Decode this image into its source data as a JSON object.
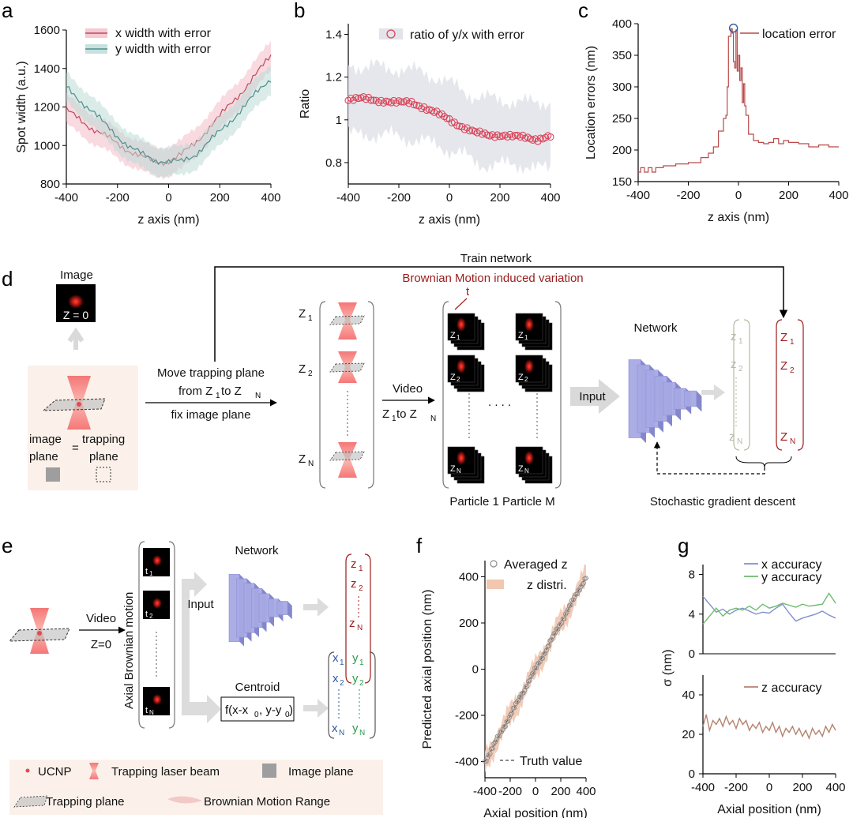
{
  "panels": {
    "a": "a",
    "b": "b",
    "c": "c",
    "d": "d",
    "e": "e",
    "f": "f",
    "g": "g"
  },
  "colors": {
    "x": "#c0485a",
    "y": "#4e8f8e",
    "ratio": "#d9455b",
    "loc": "#b84a4a",
    "accent": "#9b1c1c",
    "net": "#a7a9e4",
    "zx": "#7f8fd0",
    "zy": "#6fba6f",
    "zz": "#b5836f",
    "green": "#2e9b4a",
    "blue": "#2c5aa0",
    "gray": "#b7b9a4",
    "beige": "#fbf1ea"
  },
  "diagram_d": {
    "train": "Train network",
    "brownian": "Brownian Motion induced variation",
    "t": "t",
    "image": "Image",
    "z0": "Z = 0",
    "move1": "Move trapping plane",
    "move2": "from Z",
    "move2b": " to Z",
    "sub1": "1",
    "subN": "N",
    "sub2": "2",
    "fix": "fix image plane",
    "imgplane1": "image",
    "imgplane2": "plane",
    "eq": "=",
    "trap1": "trapping",
    "trap2": "plane",
    "Zsym": "Z",
    "zsym": "z",
    "video": "Video",
    "vrange": "Z",
    "vto": " to Z",
    "dots": ". . . .",
    "particle": "Particle 1 Particle M",
    "network": "Network",
    "input": "Input",
    "sgd": "Stochastic gradient descent"
  },
  "diagram_e": {
    "video": "Video",
    "z0": "Z=0",
    "axial": "Axial Brownian motion",
    "tsym": "t",
    "input": "Input",
    "network": "Network",
    "centroid": "Centroid",
    "formula": "f(x-x",
    "formula_b": ", y-y",
    "formula_c": ")",
    "zero": "0",
    "xsym": "x",
    "ysym": "y",
    "zsym": "z",
    "legend_ucnp": "UCNP",
    "legend_laser": "Trapping laser beam",
    "legend_image": "Image plane",
    "legend_trap": "Trapping plane",
    "legend_brown": "Brownian Motion Range"
  },
  "chart_data": [
    {
      "id": "a",
      "type": "area",
      "title": "",
      "xlabel": "z axis (nm)",
      "ylabel": "Spot width (a.u.)",
      "xlim": [
        -400,
        400
      ],
      "ylim": [
        800,
        1600
      ],
      "xticks": [
        -400,
        -200,
        0,
        200,
        400
      ],
      "yticks": [
        800,
        1000,
        1200,
        1400,
        1600
      ],
      "legend": "top-left",
      "x": [
        -400,
        -350,
        -300,
        -250,
        -200,
        -150,
        -100,
        -50,
        0,
        50,
        100,
        150,
        200,
        250,
        300,
        350,
        400
      ],
      "series": [
        {
          "name": "x width with error",
          "color": "#c0485a",
          "values": [
            1180,
            1140,
            1090,
            1050,
            1010,
            970,
            935,
            915,
            920,
            950,
            1010,
            1080,
            1150,
            1230,
            1300,
            1380,
            1470
          ],
          "error": 75
        },
        {
          "name": "y width with error",
          "color": "#4e8f8e",
          "values": [
            1300,
            1240,
            1180,
            1110,
            1050,
            990,
            950,
            925,
            915,
            915,
            950,
            1010,
            1070,
            1140,
            1210,
            1280,
            1350
          ],
          "error": 75
        }
      ]
    },
    {
      "id": "b",
      "type": "scatter",
      "title": "",
      "xlabel": "z axis (nm)",
      "ylabel": "Ratio",
      "xlim": [
        -400,
        400
      ],
      "ylim": [
        0.7,
        1.45
      ],
      "xticks": [
        -400,
        -200,
        0,
        200,
        400
      ],
      "yticks": [
        0.8,
        1.0,
        1.2,
        1.4
      ],
      "legend": "top-right",
      "series": [
        {
          "name": "ratio of y/x with error",
          "color": "#d9455b",
          "x": [
            -400,
            -350,
            -300,
            -250,
            -200,
            -150,
            -100,
            -50,
            0,
            50,
            100,
            150,
            200,
            250,
            300,
            350,
            400
          ],
          "values": [
            1.1,
            1.1,
            1.09,
            1.09,
            1.08,
            1.08,
            1.06,
            1.03,
            1.0,
            0.97,
            0.94,
            0.93,
            0.93,
            0.92,
            0.92,
            0.91,
            0.92
          ],
          "upper": [
            1.26,
            1.25,
            1.25,
            1.24,
            1.24,
            1.23,
            1.22,
            1.2,
            1.17,
            1.14,
            1.11,
            1.1,
            1.09,
            1.09,
            1.08,
            1.08,
            1.09
          ],
          "lower": [
            0.93,
            0.93,
            0.93,
            0.93,
            0.92,
            0.91,
            0.9,
            0.88,
            0.86,
            0.84,
            0.8,
            0.79,
            0.79,
            0.79,
            0.79,
            0.77,
            0.77
          ]
        }
      ]
    },
    {
      "id": "c",
      "type": "line",
      "title": "",
      "xlabel": "z axis (nm)",
      "ylabel": "Location errors (nm)",
      "xlim": [
        -400,
        400
      ],
      "ylim": [
        150,
        400
      ],
      "xticks": [
        -400,
        -200,
        0,
        200,
        400
      ],
      "yticks": [
        150,
        200,
        250,
        300,
        350,
        400
      ],
      "legend": "top-right",
      "series": [
        {
          "name": "location error",
          "color": "#b84a4a",
          "x": [
            -400,
            -390,
            -375,
            -360,
            -345,
            -330,
            -300,
            -250,
            -200,
            -150,
            -120,
            -100,
            -80,
            -60,
            -50,
            -45,
            -40,
            -30,
            -25,
            -20,
            -15,
            -10,
            -5,
            0,
            5,
            10,
            15,
            20,
            25,
            30,
            40,
            60,
            80,
            100,
            120,
            140,
            160,
            180,
            200,
            240,
            280,
            320,
            360,
            400
          ],
          "values": [
            165,
            172,
            165,
            172,
            165,
            172,
            175,
            178,
            180,
            188,
            195,
            205,
            230,
            250,
            255,
            300,
            380,
            392,
            385,
            340,
            330,
            390,
            325,
            350,
            310,
            330,
            275,
            305,
            270,
            255,
            225,
            215,
            212,
            210,
            212,
            218,
            210,
            215,
            212,
            210,
            205,
            208,
            205,
            205
          ]
        }
      ],
      "marker": {
        "x": -20,
        "y": 393
      }
    },
    {
      "id": "f",
      "type": "scatter",
      "title": "",
      "xlabel": "Axial position (nm)",
      "ylabel": "Predicted axial position (nm)",
      "xlim": [
        -400,
        400
      ],
      "ylim": [
        -470,
        470
      ],
      "xticks": [
        -400,
        -200,
        0,
        200,
        400
      ],
      "xtick_labels": [
        "-400",
        "-200",
        "0",
        "200",
        "400"
      ],
      "yticks": [
        -400,
        -200,
        0,
        200,
        400
      ],
      "legend": "top-left",
      "series": [
        {
          "name": "Averaged z",
          "color": "#8c8c8c",
          "values": "y = x + small deviation, 80 points from -400 to 400"
        },
        {
          "name": "z distri.",
          "color": "#f1c7b0",
          "spread": 55
        },
        {
          "name": "Truth value",
          "color": "#444444",
          "style": "dashed"
        }
      ]
    },
    {
      "id": "g-top",
      "type": "line",
      "title": "",
      "xlabel": "",
      "ylabel": "σ (nm)",
      "xlim": [
        -400,
        400
      ],
      "ylim": [
        0,
        9
      ],
      "yticks": [
        0,
        4,
        8
      ],
      "legend": "top-right",
      "x": [
        -400,
        -360,
        -320,
        -280,
        -240,
        -200,
        -160,
        -120,
        -80,
        -40,
        0,
        40,
        80,
        120,
        160,
        200,
        240,
        280,
        320,
        360,
        400
      ],
      "series": [
        {
          "name": "x accuracy",
          "color": "#7f8fd0",
          "values": [
            5.8,
            5.0,
            4.2,
            4.5,
            4.0,
            4.4,
            4.6,
            4.3,
            4.0,
            4.2,
            4.1,
            4.6,
            5.0,
            4.1,
            3.3,
            3.6,
            3.8,
            4.0,
            4.3,
            3.9,
            3.6
          ]
        },
        {
          "name": "y accuracy",
          "color": "#6fba6f",
          "values": [
            3.0,
            3.8,
            4.6,
            3.8,
            4.4,
            4.6,
            4.4,
            4.8,
            4.4,
            5.0,
            4.6,
            4.8,
            5.1,
            4.9,
            4.7,
            5.0,
            4.8,
            4.9,
            5.0,
            6.1,
            5.1
          ]
        }
      ]
    },
    {
      "id": "g-bottom",
      "type": "line",
      "title": "",
      "xlabel": "Axial position (nm)",
      "ylabel": "",
      "xlim": [
        -400,
        400
      ],
      "ylim": [
        0,
        50
      ],
      "xticks": [
        -400,
        -200,
        0,
        200,
        400
      ],
      "yticks": [
        0,
        20,
        40
      ],
      "legend": "top-right",
      "series": [
        {
          "name": "z accuracy",
          "color": "#b5836f",
          "x": [
            -400,
            -380,
            -360,
            -340,
            -320,
            -300,
            -280,
            -260,
            -240,
            -220,
            -200,
            -180,
            -160,
            -140,
            -120,
            -100,
            -80,
            -60,
            -40,
            -20,
            0,
            20,
            40,
            60,
            80,
            100,
            120,
            140,
            160,
            180,
            200,
            220,
            240,
            260,
            280,
            300,
            320,
            340,
            360,
            380,
            400
          ],
          "values": [
            24,
            30,
            22,
            27,
            25,
            28,
            24,
            29,
            25,
            27,
            23,
            28,
            25,
            27,
            22,
            25,
            23,
            26,
            21,
            24,
            22,
            26,
            21,
            24,
            19,
            23,
            21,
            24,
            20,
            23,
            19,
            22,
            18,
            23,
            20,
            22,
            19,
            24,
            21,
            25,
            22
          ]
        }
      ]
    }
  ]
}
